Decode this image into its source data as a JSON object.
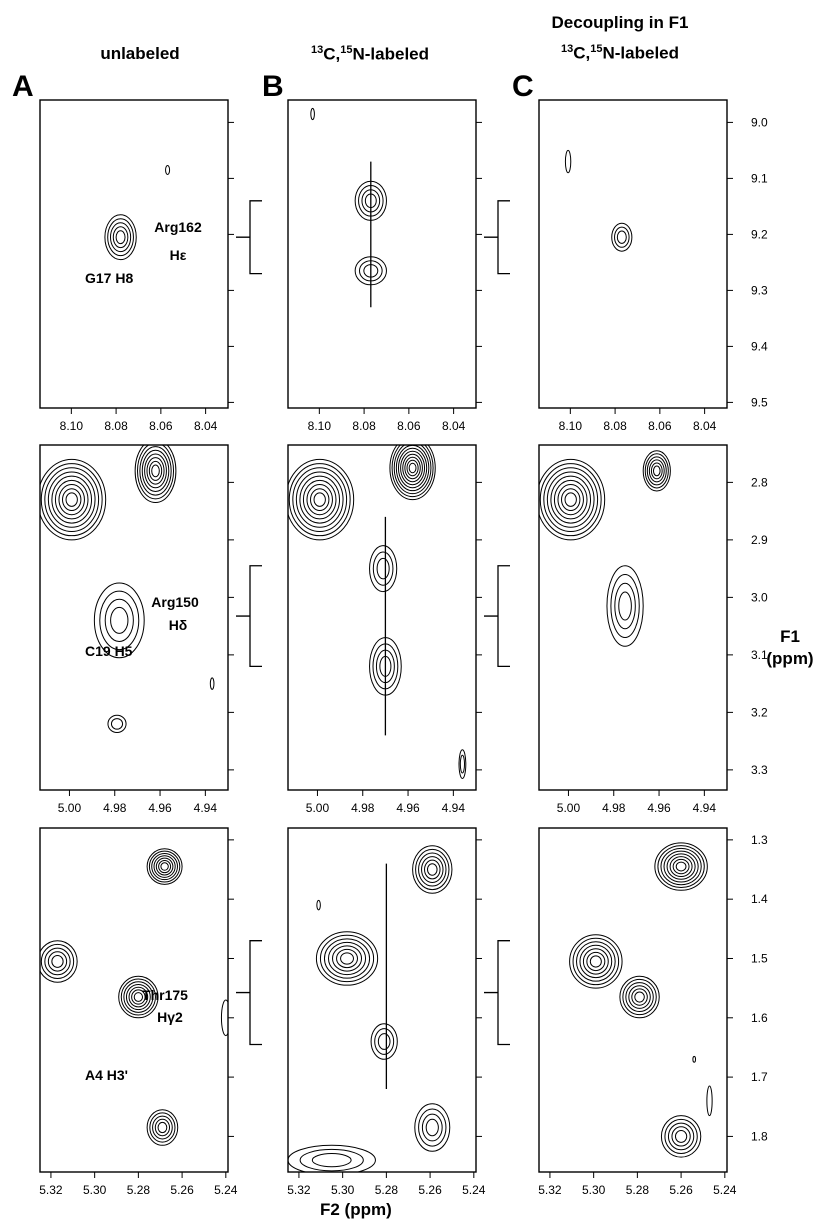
{
  "columns": [
    {
      "letter": "A",
      "header_lines": [
        "unlabeled"
      ]
    },
    {
      "letter": "B",
      "header_lines": [
        "",
        "C,",
        "N-labeled"
      ],
      "sup": [
        "13",
        "15"
      ]
    },
    {
      "letter": "C",
      "header_lines": [
        "Decoupling in F1",
        "C,",
        "N-labeled"
      ],
      "sup": [
        "13",
        "15"
      ]
    }
  ],
  "axis_labels": {
    "f1": [
      "F1",
      "(ppm)"
    ],
    "f2": "F2 (ppm)"
  },
  "chart_data": [
    {
      "type": "contour",
      "row": 0,
      "f2_ticks": [
        "8.10",
        "8.08",
        "8.06",
        "8.04"
      ],
      "f2_range": [
        8.114,
        8.03
      ],
      "f1_ticks": [
        "9.0",
        "9.1",
        "9.2",
        "9.3",
        "9.4",
        "9.5"
      ],
      "f1_range": [
        8.96,
        9.51
      ],
      "bracket_f1": [
        9.14,
        9.27
      ],
      "annotations": [
        {
          "text": "Arg162",
          "sub": "Hε"
        },
        {
          "text": "G17 H8"
        }
      ],
      "panels": {
        "A": [
          {
            "x": 8.078,
            "y": 9.205,
            "rx": 0.007,
            "ry": 0.04,
            "levels": 5
          },
          {
            "x": 8.057,
            "y": 9.085,
            "rx": 0.0009,
            "ry": 0.008,
            "levels": 1
          }
        ],
        "B": [
          {
            "x": 8.077,
            "y": 9.14,
            "rx": 0.007,
            "ry": 0.035,
            "levels": 4
          },
          {
            "x": 8.077,
            "y": 9.265,
            "rx": 0.007,
            "ry": 0.025,
            "levels": 3
          },
          {
            "x": 8.103,
            "y": 8.985,
            "rx": 0.0008,
            "ry": 0.01,
            "levels": 1
          }
        ],
        "C": [
          {
            "x": 8.077,
            "y": 9.205,
            "rx": 0.0045,
            "ry": 0.025,
            "levels": 3
          },
          {
            "x": 8.101,
            "y": 9.07,
            "rx": 0.0012,
            "ry": 0.02,
            "levels": 1
          }
        ],
        "B_line": {
          "x": 8.077,
          "y": [
            9.07,
            9.33
          ]
        }
      }
    },
    {
      "type": "contour",
      "row": 1,
      "f2_ticks": [
        "5.00",
        "4.98",
        "4.96",
        "4.94"
      ],
      "f2_range": [
        5.013,
        4.93
      ],
      "f1_ticks": [
        "2.8",
        "2.9",
        "3.0",
        "3.1",
        "3.2",
        "3.3"
      ],
      "f1_range": [
        2.735,
        3.335
      ],
      "bracket_f1": [
        2.945,
        3.12
      ],
      "annotations": [
        {
          "text": "Arg150",
          "sub": "Hδ"
        },
        {
          "text": "C19 H5"
        }
      ],
      "panels": {
        "A": [
          {
            "x": 4.999,
            "y": 2.83,
            "rx": 0.015,
            "ry": 0.07,
            "levels": 9
          },
          {
            "x": 4.962,
            "y": 2.78,
            "rx": 0.009,
            "ry": 0.055,
            "levels": 8
          },
          {
            "x": 4.978,
            "y": 3.04,
            "rx": 0.011,
            "ry": 0.065,
            "levels": 4
          },
          {
            "x": 4.979,
            "y": 3.22,
            "rx": 0.004,
            "ry": 0.015,
            "levels": 2
          },
          {
            "x": 4.937,
            "y": 3.15,
            "rx": 0.0008,
            "ry": 0.01,
            "levels": 1
          }
        ],
        "B": [
          {
            "x": 4.999,
            "y": 2.83,
            "rx": 0.015,
            "ry": 0.07,
            "levels": 9
          },
          {
            "x": 4.958,
            "y": 2.775,
            "rx": 0.01,
            "ry": 0.055,
            "levels": 10
          },
          {
            "x": 4.971,
            "y": 2.95,
            "rx": 0.006,
            "ry": 0.04,
            "levels": 3
          },
          {
            "x": 4.97,
            "y": 3.12,
            "rx": 0.007,
            "ry": 0.05,
            "levels": 4
          },
          {
            "x": 4.936,
            "y": 3.29,
            "rx": 0.0015,
            "ry": 0.025,
            "levels": 2
          }
        ],
        "C": [
          {
            "x": 4.999,
            "y": 2.83,
            "rx": 0.015,
            "ry": 0.07,
            "levels": 9
          },
          {
            "x": 4.961,
            "y": 2.78,
            "rx": 0.006,
            "ry": 0.035,
            "levels": 6
          },
          {
            "x": 4.975,
            "y": 3.015,
            "rx": 0.008,
            "ry": 0.07,
            "levels": 4
          }
        ],
        "B_line": {
          "x": 4.97,
          "y": [
            2.86,
            3.24
          ]
        }
      }
    },
    {
      "type": "contour",
      "row": 2,
      "f2_ticks": [
        "5.32",
        "5.30",
        "5.28",
        "5.26",
        "5.24"
      ],
      "f2_range": [
        5.325,
        5.239
      ],
      "f1_ticks": [
        "1.3",
        "1.4",
        "1.5",
        "1.6",
        "1.7",
        "1.8"
      ],
      "f1_range": [
        1.28,
        1.86
      ],
      "bracket_f1": [
        1.47,
        1.645
      ],
      "annotations": [
        {
          "text": "Thr175",
          "sub": "Hγ2"
        },
        {
          "text": "A4 H3'"
        }
      ],
      "panels": {
        "A": [
          {
            "x": 5.268,
            "y": 1.345,
            "rx": 0.008,
            "ry": 0.03,
            "levels": 7
          },
          {
            "x": 5.317,
            "y": 1.505,
            "rx": 0.009,
            "ry": 0.035,
            "levels": 5
          },
          {
            "x": 5.28,
            "y": 1.565,
            "rx": 0.009,
            "ry": 0.035,
            "levels": 7
          },
          {
            "x": 5.269,
            "y": 1.785,
            "rx": 0.007,
            "ry": 0.03,
            "levels": 5
          },
          {
            "x": 5.24,
            "y": 1.6,
            "rx": 0.002,
            "ry": 0.03,
            "levels": 1
          }
        ],
        "B": [
          {
            "x": 5.259,
            "y": 1.35,
            "rx": 0.009,
            "ry": 0.04,
            "levels": 6
          },
          {
            "x": 5.298,
            "y": 1.5,
            "rx": 0.014,
            "ry": 0.045,
            "levels": 7
          },
          {
            "x": 5.281,
            "y": 1.64,
            "rx": 0.006,
            "ry": 0.03,
            "levels": 3
          },
          {
            "x": 5.259,
            "y": 1.785,
            "rx": 0.008,
            "ry": 0.04,
            "levels": 4
          },
          {
            "x": 5.305,
            "y": 1.84,
            "rx": 0.02,
            "ry": 0.025,
            "levels": 3
          },
          {
            "x": 5.311,
            "y": 1.41,
            "rx": 0.0008,
            "ry": 0.008,
            "levels": 1
          }
        ],
        "C": [
          {
            "x": 5.26,
            "y": 1.345,
            "rx": 0.012,
            "ry": 0.04,
            "levels": 8
          },
          {
            "x": 5.299,
            "y": 1.505,
            "rx": 0.012,
            "ry": 0.045,
            "levels": 7
          },
          {
            "x": 5.279,
            "y": 1.565,
            "rx": 0.009,
            "ry": 0.035,
            "levels": 6
          },
          {
            "x": 5.26,
            "y": 1.8,
            "rx": 0.009,
            "ry": 0.035,
            "levels": 5
          },
          {
            "x": 5.247,
            "y": 1.74,
            "rx": 0.0012,
            "ry": 0.025,
            "levels": 1
          },
          {
            "x": 5.254,
            "y": 1.67,
            "rx": 0.0006,
            "ry": 0.005,
            "levels": 1
          }
        ],
        "B_line": {
          "x": 5.28,
          "y": [
            1.34,
            1.72
          ]
        }
      }
    }
  ]
}
